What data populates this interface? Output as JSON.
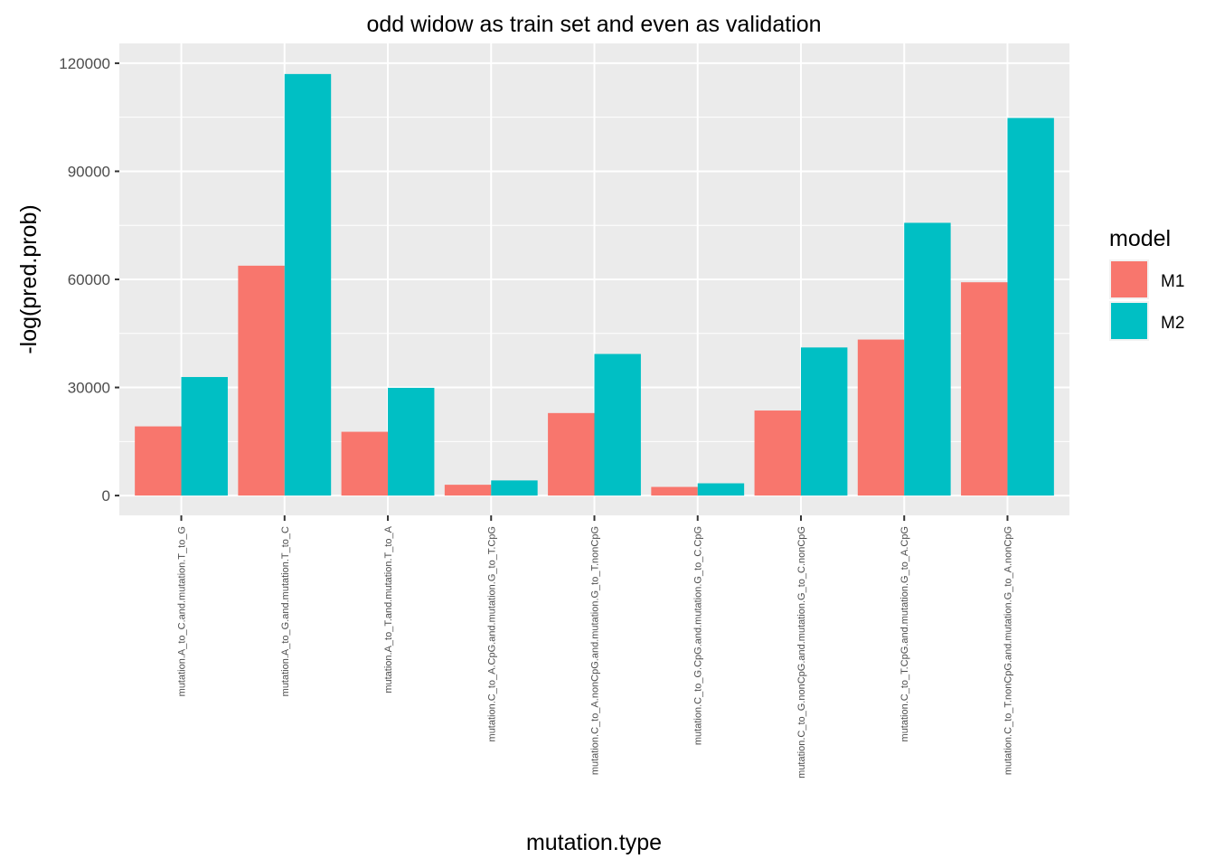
{
  "chart_data": {
    "type": "bar",
    "title": "odd widow as train set and even as validation",
    "xlabel": "mutation.type",
    "ylabel": "-log(pred.prob)",
    "ylim": [
      -5500,
      125500
    ],
    "yticks": [
      0,
      30000,
      60000,
      90000,
      120000
    ],
    "ytick_labels": [
      "0",
      "30000",
      "60000",
      "90000",
      "120000"
    ],
    "categories": [
      "mutation.A_to_C.and.mutation.T_to_G",
      "mutation.A_to_G.and.mutation.T_to_C",
      "mutation.A_to_T.and.mutation.T_to_A",
      "mutation.C_to_A.CpG.and.mutation.G_to_T.CpG",
      "mutation.C_to_A.nonCpG.and.mutation.G_to_T.nonCpG",
      "mutation.C_to_G.CpG.and.mutation.G_to_C.CpG",
      "mutation.C_to_G.nonCpG.and.mutation.G_to_C.nonCpG",
      "mutation.C_to_T.CpG.and.mutation.G_to_A.CpG",
      "mutation.C_to_T.nonCpG.and.mutation.G_to_A.nonCpG"
    ],
    "series": [
      {
        "name": "M1",
        "color": "#F8766D",
        "values": [
          19200,
          63800,
          17700,
          3000,
          22900,
          2400,
          23600,
          43300,
          59200
        ]
      },
      {
        "name": "M2",
        "color": "#00BFC4",
        "values": [
          32900,
          117000,
          29900,
          4200,
          39300,
          3400,
          41100,
          75700,
          104800
        ]
      }
    ],
    "legend": {
      "title": "model",
      "position": "right"
    },
    "grid": true,
    "panel_background": "#EBEBEB",
    "grid_color": "#FFFFFF"
  }
}
